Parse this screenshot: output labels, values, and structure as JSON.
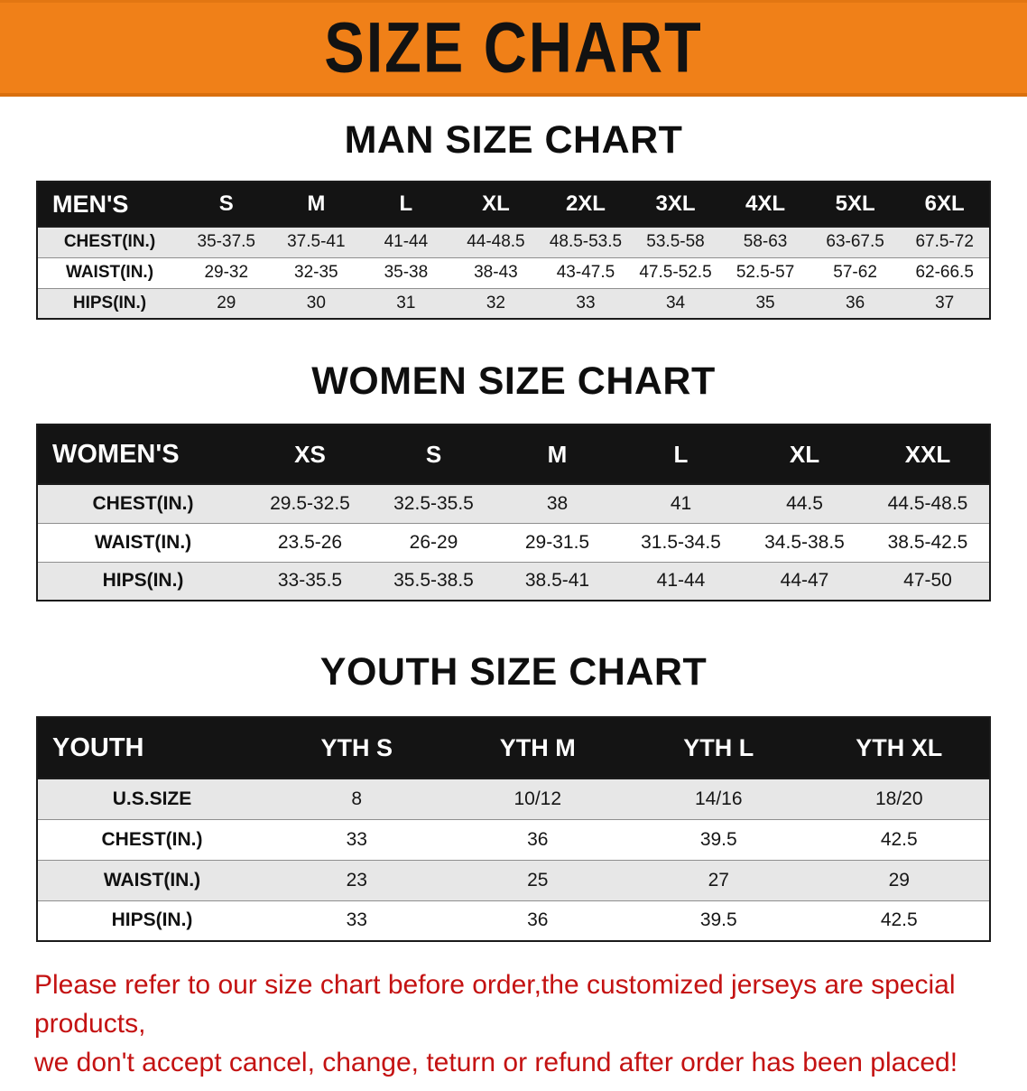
{
  "banner": {
    "title": "SIZE CHART"
  },
  "sections": [
    {
      "id": "men",
      "heading": "MAN SIZE CHART",
      "table": {
        "header": [
          "MEN'S",
          "S",
          "M",
          "L",
          "XL",
          "2XL",
          "3XL",
          "4XL",
          "5XL",
          "6XL"
        ],
        "rows": [
          {
            "label": "CHEST(IN.)",
            "values": [
              "35-37.5",
              "37.5-41",
              "41-44",
              "44-48.5",
              "48.5-53.5",
              "53.5-58",
              "58-63",
              "63-67.5",
              "67.5-72"
            ]
          },
          {
            "label": "WAIST(IN.)",
            "values": [
              "29-32",
              "32-35",
              "35-38",
              "38-43",
              "43-47.5",
              "47.5-52.5",
              "52.5-57",
              "57-62",
              "62-66.5"
            ]
          },
          {
            "label": "HIPS(IN.)",
            "values": [
              "29",
              "30",
              "31",
              "32",
              "33",
              "34",
              "35",
              "36",
              "37"
            ]
          }
        ]
      }
    },
    {
      "id": "women",
      "heading": "WOMEN SIZE CHART",
      "table": {
        "header": [
          "WOMEN'S",
          "XS",
          "S",
          "M",
          "L",
          "XL",
          "XXL"
        ],
        "rows": [
          {
            "label": "CHEST(IN.)",
            "values": [
              "29.5-32.5",
              "32.5-35.5",
              "38",
              "41",
              "44.5",
              "44.5-48.5"
            ]
          },
          {
            "label": "WAIST(IN.)",
            "values": [
              "23.5-26",
              "26-29",
              "29-31.5",
              "31.5-34.5",
              "34.5-38.5",
              "38.5-42.5"
            ]
          },
          {
            "label": "HIPS(IN.)",
            "values": [
              "33-35.5",
              "35.5-38.5",
              "38.5-41",
              "41-44",
              "44-47",
              "47-50"
            ]
          }
        ]
      }
    },
    {
      "id": "youth",
      "heading": "YOUTH SIZE CHART",
      "table": {
        "header": [
          "YOUTH",
          "YTH S",
          "YTH M",
          "YTH L",
          "YTH XL"
        ],
        "rows": [
          {
            "label": "U.S.SIZE",
            "values": [
              "8",
              "10/12",
              "14/16",
              "18/20"
            ]
          },
          {
            "label": "CHEST(IN.)",
            "values": [
              "33",
              "36",
              "39.5",
              "42.5"
            ]
          },
          {
            "label": "WAIST(IN.)",
            "values": [
              "23",
              "25",
              "27",
              "29"
            ]
          },
          {
            "label": "HIPS(IN.)",
            "values": [
              "33",
              "36",
              "39.5",
              "42.5"
            ]
          }
        ]
      }
    }
  ],
  "disclaimer": {
    "line1": "Please refer to our size chart before order,the customized jerseys are special products,",
    "line2": "we don't accept cancel, change, teturn or refund after order has been placed!"
  },
  "colors": {
    "banner_orange": "#f08018",
    "header_black": "#141414",
    "row_gray": "#e7e7e7",
    "disclaimer_red": "#c41212"
  }
}
